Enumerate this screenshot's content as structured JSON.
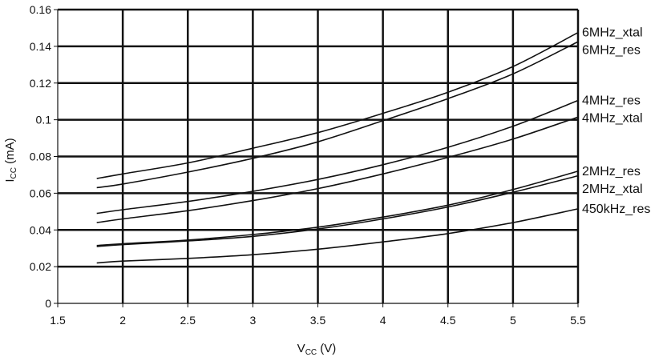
{
  "chart_data": {
    "type": "line",
    "title": "",
    "xlabel": {
      "main": "V",
      "sub": "CC",
      "unit": " (V)"
    },
    "ylabel": {
      "main": "I",
      "sub": "CC",
      "unit": " (mA)"
    },
    "xlim": [
      1.5,
      5.5
    ],
    "ylim": [
      0,
      0.16
    ],
    "xticks": [
      "1.5",
      "2",
      "2.5",
      "3",
      "3.5",
      "4",
      "4.5",
      "5",
      "5.5"
    ],
    "yticks": [
      "0",
      "0.02",
      "0.04",
      "0.06",
      "0.08",
      "0.1",
      "0.12",
      "0.14",
      "0.16"
    ],
    "grid": true,
    "legend": "right, labels next to line ends",
    "line_color": "#111111",
    "series": [
      {
        "name": "6MHz_xtal",
        "x": [
          1.8,
          2,
          2.5,
          3,
          3.5,
          4,
          4.5,
          5,
          5.5
        ],
        "y": [
          0.068,
          0.0705,
          0.0765,
          0.0845,
          0.093,
          0.1035,
          0.115,
          0.129,
          0.1475
        ]
      },
      {
        "name": "6MHz_res",
        "x": [
          1.8,
          2,
          2.5,
          3,
          3.5,
          4,
          4.5,
          5,
          5.5
        ],
        "y": [
          0.063,
          0.065,
          0.0715,
          0.079,
          0.088,
          0.0995,
          0.1115,
          0.125,
          0.1425
        ]
      },
      {
        "name": "4MHz_res",
        "x": [
          1.8,
          2,
          2.5,
          3,
          3.5,
          4,
          4.5,
          5,
          5.5
        ],
        "y": [
          0.049,
          0.051,
          0.0555,
          0.061,
          0.0675,
          0.0755,
          0.085,
          0.0965,
          0.1105
        ]
      },
      {
        "name": "4MHz_xtal",
        "x": [
          1.8,
          2,
          2.5,
          3,
          3.5,
          4,
          4.5,
          5,
          5.5
        ],
        "y": [
          0.044,
          0.046,
          0.0505,
          0.056,
          0.0625,
          0.0705,
          0.0795,
          0.0895,
          0.1015
        ]
      },
      {
        "name": "2MHz_res",
        "x": [
          1.8,
          2,
          2.5,
          3,
          3.5,
          4,
          4.5,
          5,
          5.5
        ],
        "y": [
          0.0315,
          0.0325,
          0.0345,
          0.0375,
          0.0415,
          0.047,
          0.0535,
          0.062,
          0.072
        ]
      },
      {
        "name": "2MHz_xtal",
        "x": [
          1.8,
          2,
          2.5,
          3,
          3.5,
          4,
          4.5,
          5,
          5.5
        ],
        "y": [
          0.031,
          0.032,
          0.034,
          0.0365,
          0.0405,
          0.046,
          0.0525,
          0.0605,
          0.0695
        ]
      },
      {
        "name": "450kHz_res",
        "x": [
          1.8,
          2,
          2.5,
          3,
          3.5,
          4,
          4.5,
          5,
          5.5
        ],
        "y": [
          0.022,
          0.023,
          0.0245,
          0.0265,
          0.0295,
          0.0335,
          0.038,
          0.044,
          0.0515
        ]
      }
    ]
  }
}
